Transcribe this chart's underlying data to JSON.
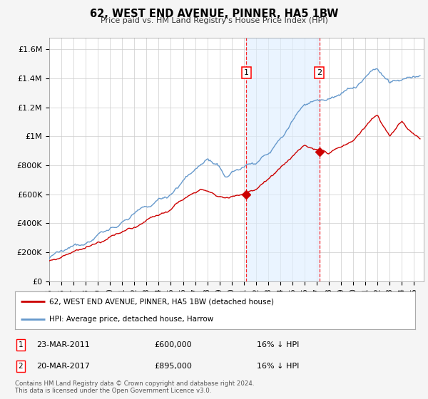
{
  "title": "62, WEST END AVENUE, PINNER, HA5 1BW",
  "subtitle": "Price paid vs. HM Land Registry's House Price Index (HPI)",
  "ylabel_ticks": [
    "£0",
    "£200K",
    "£400K",
    "£600K",
    "£800K",
    "£1M",
    "£1.2M",
    "£1.4M",
    "£1.6M"
  ],
  "ytick_values": [
    0,
    200000,
    400000,
    600000,
    800000,
    1000000,
    1200000,
    1400000,
    1600000
  ],
  "ylim": [
    0,
    1680000
  ],
  "sale1_x": 2011.22,
  "sale1_y": 600000,
  "sale2_x": 2017.22,
  "sale2_y": 895000,
  "hpi_color": "#6699cc",
  "hpi_fill_color": "#ddeeff",
  "sale_color": "#cc0000",
  "bg_color": "#f5f5f5",
  "plot_bg": "#ffffff",
  "legend_sale_label": "62, WEST END AVENUE, PINNER, HA5 1BW (detached house)",
  "legend_hpi_label": "HPI: Average price, detached house, Harrow",
  "sale1_date": "23-MAR-2011",
  "sale1_price": "£600,000",
  "sale1_hpi": "16% ↓ HPI",
  "sale2_date": "20-MAR-2017",
  "sale2_price": "£895,000",
  "sale2_hpi": "16% ↓ HPI",
  "footnote": "Contains HM Land Registry data © Crown copyright and database right 2024.\nThis data is licensed under the Open Government Licence v3.0.",
  "xtick_years": [
    1995,
    1996,
    1997,
    1998,
    1999,
    2000,
    2001,
    2002,
    2003,
    2004,
    2005,
    2006,
    2007,
    2008,
    2009,
    2010,
    2011,
    2012,
    2013,
    2014,
    2015,
    2016,
    2017,
    2018,
    2019,
    2020,
    2021,
    2022,
    2023,
    2024,
    2025
  ]
}
